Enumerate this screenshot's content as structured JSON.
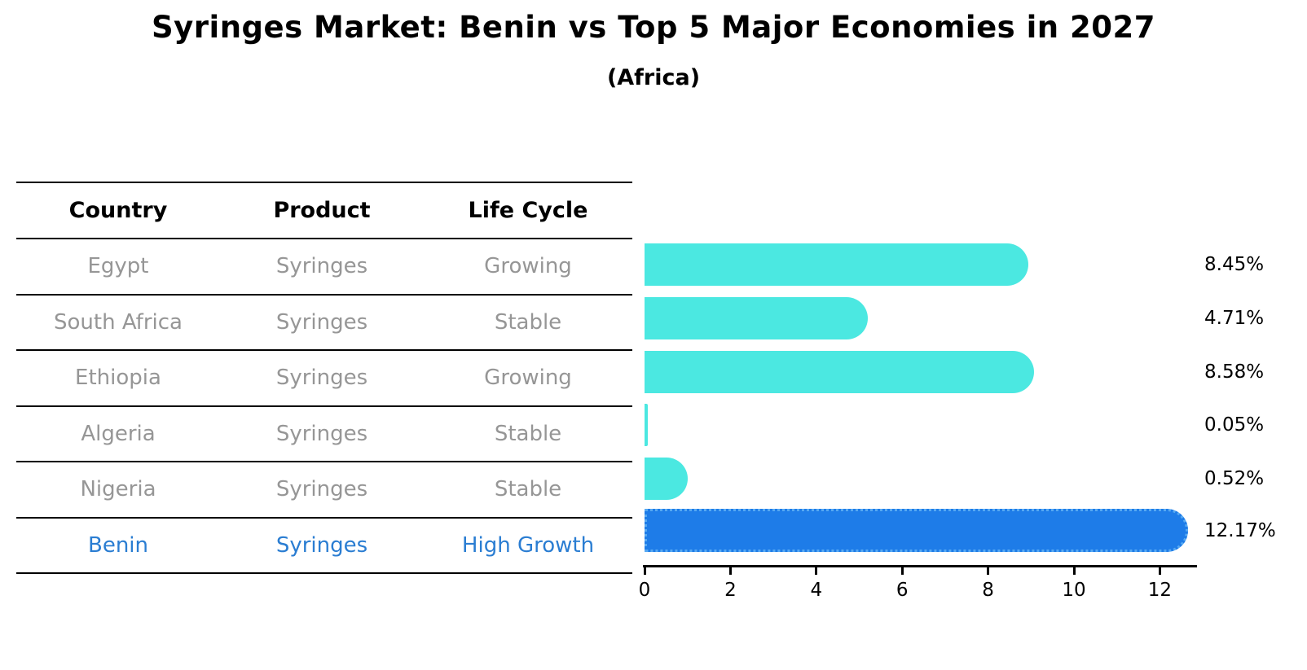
{
  "title": "Syringes Market: Benin vs Top 5 Major Economies in 2027",
  "subtitle": "(Africa)",
  "table": {
    "headers": [
      "Country",
      "Product",
      "Life Cycle"
    ],
    "rows": [
      {
        "country": "Egypt",
        "product": "Syringes",
        "life_cycle": "Growing",
        "highlight": false
      },
      {
        "country": "South Africa",
        "product": "Syringes",
        "life_cycle": "Stable",
        "highlight": false
      },
      {
        "country": "Ethiopia",
        "product": "Syringes",
        "life_cycle": "Growing",
        "highlight": false
      },
      {
        "country": "Algeria",
        "product": "Syringes",
        "life_cycle": "Stable",
        "highlight": false
      },
      {
        "country": "Nigeria",
        "product": "Syringes",
        "life_cycle": "Stable",
        "highlight": false
      },
      {
        "country": "Benin",
        "product": "Syringes",
        "life_cycle": "High Growth",
        "highlight": true
      }
    ]
  },
  "chart_data": {
    "type": "bar",
    "orientation": "horizontal",
    "title": "Syringes Market: Benin vs Top 5 Major Economies in 2027",
    "subtitle": "(Africa)",
    "categories": [
      "Egypt",
      "South Africa",
      "Ethiopia",
      "Algeria",
      "Nigeria",
      "Benin"
    ],
    "values": [
      8.45,
      4.71,
      8.58,
      0.05,
      0.52,
      12.17
    ],
    "value_labels": [
      "8.45%",
      "4.71%",
      "8.58%",
      "0.05%",
      "0.52%",
      "12.17%"
    ],
    "xlabel": "",
    "ylabel": "",
    "xlim": [
      0,
      12.8
    ],
    "xticks": [
      0,
      2,
      4,
      6,
      8,
      10,
      12
    ],
    "grid": false,
    "legend": false,
    "bar_color": "#4be8e1",
    "highlight_bar_color": "#1e7ce8",
    "highlight_edge_color": "#57a9f2",
    "highlight_index": 5
  },
  "colors": {
    "background": "#ffffff",
    "table_text": "#969696",
    "table_header_text": "#000000",
    "highlight_text": "#2a7dd2",
    "axis": "#000000"
  }
}
